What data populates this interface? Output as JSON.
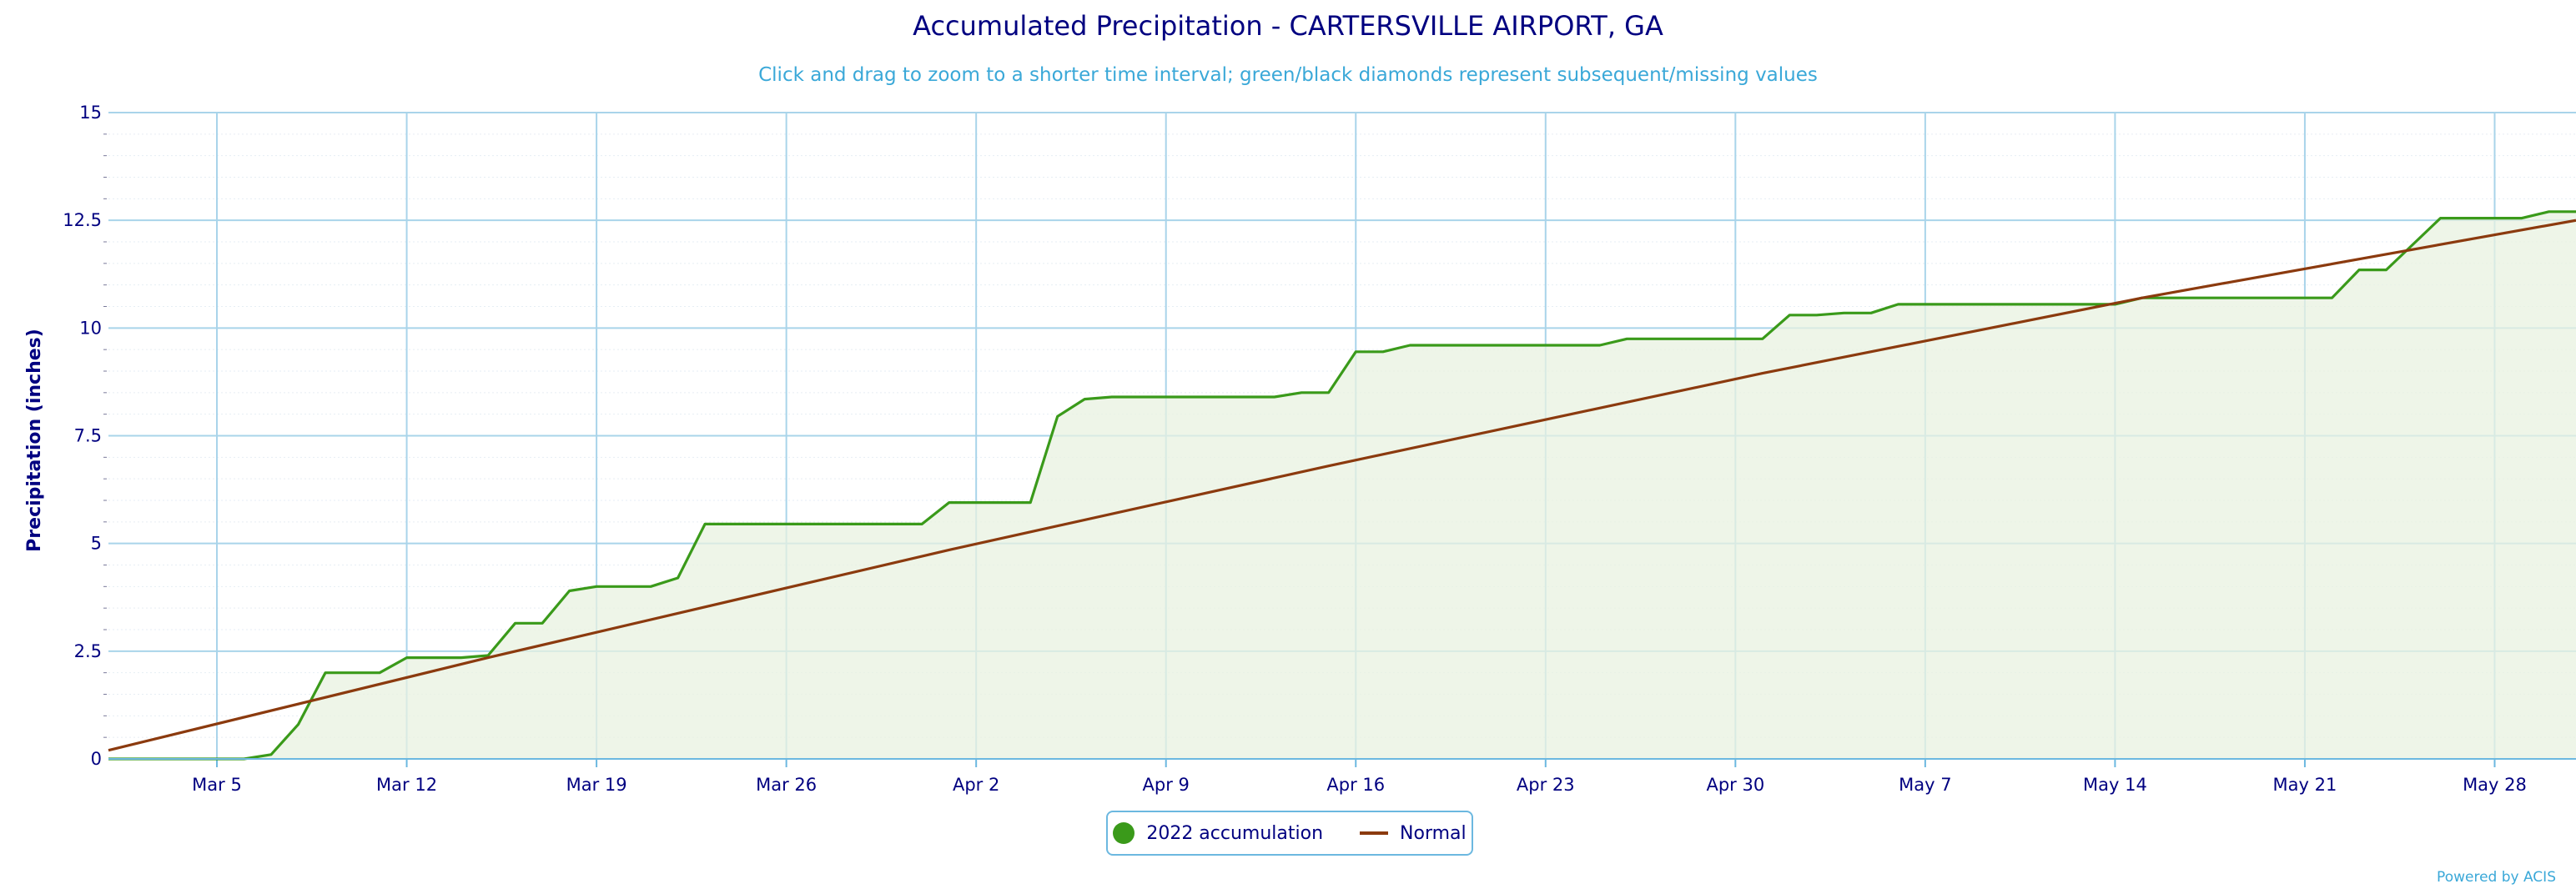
{
  "chart_data": {
    "type": "line",
    "title": "Accumulated Precipitation - CARTERSVILLE AIRPORT, GA",
    "subtitle": "Click and drag to zoom to a shorter time interval; green/black diamonds represent subsequent/missing values",
    "ylabel": "Precipitation (inches)",
    "xlabel": "",
    "x_range": [
      "2022-03-01",
      "2022-05-31"
    ],
    "ylim": [
      0,
      15
    ],
    "yticks": [
      "0",
      "2.5",
      "5",
      "7.5",
      "10",
      "12.5",
      "15"
    ],
    "xticks": [
      {
        "date": "2022-03-05",
        "label": "Mar 5"
      },
      {
        "date": "2022-03-12",
        "label": "Mar 12"
      },
      {
        "date": "2022-03-19",
        "label": "Mar 19"
      },
      {
        "date": "2022-03-26",
        "label": "Mar 26"
      },
      {
        "date": "2022-04-02",
        "label": "Apr 2"
      },
      {
        "date": "2022-04-09",
        "label": "Apr 9"
      },
      {
        "date": "2022-04-16",
        "label": "Apr 16"
      },
      {
        "date": "2022-04-23",
        "label": "Apr 23"
      },
      {
        "date": "2022-04-30",
        "label": "Apr 30"
      },
      {
        "date": "2022-05-07",
        "label": "May 7"
      },
      {
        "date": "2022-05-14",
        "label": "May 14"
      },
      {
        "date": "2022-05-21",
        "label": "May 21"
      },
      {
        "date": "2022-05-28",
        "label": "May 28"
      }
    ],
    "grid": true,
    "legend_position": "bottom-center",
    "series": [
      {
        "name": "2022 accumulation",
        "color": "#3a9a1a",
        "fill": "#e8f2e0",
        "points": [
          [
            "2022-03-01",
            0
          ],
          [
            "2022-03-06",
            0
          ],
          [
            "2022-03-07",
            0.1
          ],
          [
            "2022-03-08",
            0.8
          ],
          [
            "2022-03-09",
            2.0
          ],
          [
            "2022-03-10",
            2.0
          ],
          [
            "2022-03-11",
            2.0
          ],
          [
            "2022-03-12",
            2.35
          ],
          [
            "2022-03-13",
            2.35
          ],
          [
            "2022-03-14",
            2.35
          ],
          [
            "2022-03-15",
            2.4
          ],
          [
            "2022-03-16",
            3.15
          ],
          [
            "2022-03-17",
            3.15
          ],
          [
            "2022-03-18",
            3.9
          ],
          [
            "2022-03-19",
            4.0
          ],
          [
            "2022-03-20",
            4.0
          ],
          [
            "2022-03-21",
            4.0
          ],
          [
            "2022-03-22",
            4.2
          ],
          [
            "2022-03-23",
            5.45
          ],
          [
            "2022-03-24",
            5.45
          ],
          [
            "2022-03-30",
            5.45
          ],
          [
            "2022-03-31",
            5.45
          ],
          [
            "2022-04-01",
            5.95
          ],
          [
            "2022-04-02",
            5.95
          ],
          [
            "2022-04-03",
            5.95
          ],
          [
            "2022-04-04",
            5.95
          ],
          [
            "2022-04-05",
            7.95
          ],
          [
            "2022-04-06",
            8.35
          ],
          [
            "2022-04-07",
            8.4
          ],
          [
            "2022-04-12",
            8.4
          ],
          [
            "2022-04-13",
            8.4
          ],
          [
            "2022-04-14",
            8.5
          ],
          [
            "2022-04-15",
            8.5
          ],
          [
            "2022-04-16",
            9.45
          ],
          [
            "2022-04-17",
            9.45
          ],
          [
            "2022-04-18",
            9.6
          ],
          [
            "2022-04-25",
            9.6
          ],
          [
            "2022-04-26",
            9.75
          ],
          [
            "2022-04-27",
            9.75
          ],
          [
            "2022-05-01",
            9.75
          ],
          [
            "2022-05-02",
            10.3
          ],
          [
            "2022-05-03",
            10.3
          ],
          [
            "2022-05-04",
            10.35
          ],
          [
            "2022-05-05",
            10.35
          ],
          [
            "2022-05-06",
            10.55
          ],
          [
            "2022-05-07",
            10.55
          ],
          [
            "2022-05-14",
            10.55
          ],
          [
            "2022-05-15",
            10.7
          ],
          [
            "2022-05-22",
            10.7
          ],
          [
            "2022-05-23",
            11.35
          ],
          [
            "2022-05-24",
            11.35
          ],
          [
            "2022-05-25",
            11.95
          ],
          [
            "2022-05-26",
            12.55
          ],
          [
            "2022-05-29",
            12.55
          ],
          [
            "2022-05-30",
            12.7
          ],
          [
            "2022-05-31",
            12.7
          ]
        ]
      },
      {
        "name": "Normal",
        "color": "#8b3a0e",
        "points": [
          [
            "2022-03-01",
            0.2
          ],
          [
            "2022-03-15",
            2.35
          ],
          [
            "2022-04-01",
            4.85
          ],
          [
            "2022-04-15",
            6.8
          ],
          [
            "2022-05-01",
            8.95
          ],
          [
            "2022-05-15",
            10.7
          ],
          [
            "2022-05-31",
            12.5
          ]
        ]
      }
    ]
  },
  "legend": {
    "items": [
      {
        "label": "2022 accumulation",
        "color": "#3a9a1a",
        "symbol": "circle"
      },
      {
        "label": "Normal",
        "color": "#8b3a0e",
        "symbol": "line"
      }
    ]
  },
  "credit": "Powered by ACIS"
}
